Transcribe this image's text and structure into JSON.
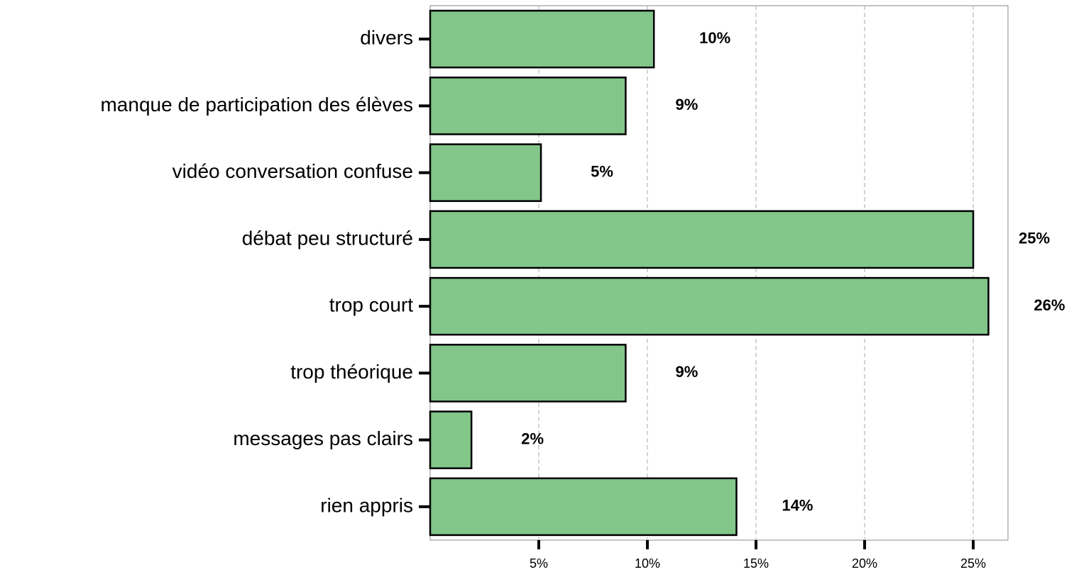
{
  "chart_data": {
    "type": "hbar",
    "categories": [
      "divers",
      "manque de participation des élèves",
      "vidéo conversation confuse",
      "débat peu structuré",
      "trop court",
      "trop théorique",
      "messages pas clairs",
      "rien appris"
    ],
    "values": [
      10.3,
      9.0,
      5.1,
      25.0,
      25.7,
      9.0,
      1.9,
      14.1
    ],
    "value_labels": [
      "10%",
      "9%",
      "5%",
      "25%",
      "26%",
      "9%",
      "2%",
      "14%"
    ],
    "color": "#82c68a",
    "xlim": [
      0,
      26.6
    ],
    "xticks": [
      {
        "value": 5,
        "label": "5%"
      },
      {
        "value": 10,
        "label": "10%"
      },
      {
        "value": 15,
        "label": "15%"
      },
      {
        "value": 20,
        "label": "20%"
      },
      {
        "value": 25,
        "label": "25%"
      }
    ],
    "grid": true
  }
}
